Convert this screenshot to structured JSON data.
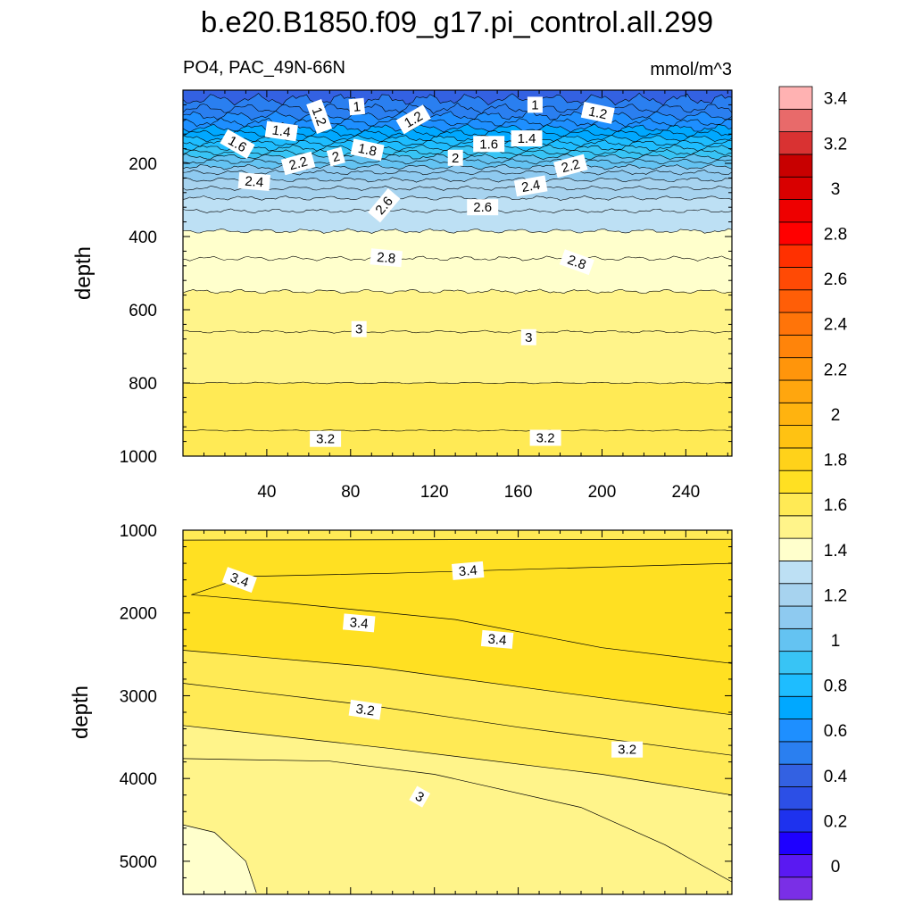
{
  "figure": {
    "title": "b.e20.B1850.f09_g17.pi_control.all.299",
    "left_subtitle": "PO4, PAC_49N-66N",
    "right_subtitle": "mmol/m^3",
    "panel_border_color": "#000000"
  },
  "chart_data": [
    {
      "type": "heatmap",
      "name": "upper-panel",
      "variable": "PO4",
      "region": "PAC_49N-66N",
      "units": "mmol/m^3",
      "ylabel": "depth",
      "xlabel": "",
      "xlim": [
        0,
        262
      ],
      "ylim": [
        0,
        1000
      ],
      "y_inverted": true,
      "x_ticks": [
        40,
        80,
        120,
        160,
        200,
        240
      ],
      "y_ticks": [
        200,
        400,
        600,
        800,
        1000
      ],
      "isoline_depths": [
        {
          "value": 0.9,
          "depth": 25
        },
        {
          "value": 1.0,
          "depth": 50
        },
        {
          "value": 1.1,
          "depth": 70
        },
        {
          "value": 1.2,
          "depth": 88
        },
        {
          "value": 1.3,
          "depth": 104
        },
        {
          "value": 1.4,
          "depth": 118
        },
        {
          "value": 1.5,
          "depth": 132
        },
        {
          "value": 1.6,
          "depth": 145
        },
        {
          "value": 1.7,
          "depth": 158
        },
        {
          "value": 1.8,
          "depth": 170
        },
        {
          "value": 1.9,
          "depth": 182
        },
        {
          "value": 2.0,
          "depth": 195
        },
        {
          "value": 2.1,
          "depth": 210
        },
        {
          "value": 2.2,
          "depth": 225
        },
        {
          "value": 2.3,
          "depth": 245
        },
        {
          "value": 2.4,
          "depth": 268
        },
        {
          "value": 2.5,
          "depth": 295
        },
        {
          "value": 2.6,
          "depth": 330
        },
        {
          "value": 2.7,
          "depth": 385
        },
        {
          "value": 2.8,
          "depth": 460
        },
        {
          "value": 2.9,
          "depth": 550
        },
        {
          "value": 3.0,
          "depth": 660
        },
        {
          "value": 3.1,
          "depth": 800
        },
        {
          "value": 3.2,
          "depth": 930
        }
      ],
      "contour_labels": [
        {
          "text": "1",
          "x": 83,
          "depth": 45,
          "rotation": -5
        },
        {
          "text": "1",
          "x": 168,
          "depth": 40,
          "rotation": 0
        },
        {
          "text": "1.2",
          "x": 198,
          "depth": 62,
          "rotation": 12
        },
        {
          "text": "1.2",
          "x": 65,
          "depth": 72,
          "rotation": 70
        },
        {
          "text": "1.2",
          "x": 110,
          "depth": 80,
          "rotation": -30
        },
        {
          "text": "1.4",
          "x": 47,
          "depth": 112,
          "rotation": 8
        },
        {
          "text": "1.4",
          "x": 164,
          "depth": 132,
          "rotation": 0
        },
        {
          "text": "1.6",
          "x": 26,
          "depth": 147,
          "rotation": 30
        },
        {
          "text": "1.6",
          "x": 146,
          "depth": 147,
          "rotation": 0
        },
        {
          "text": "1.8",
          "x": 88,
          "depth": 163,
          "rotation": 12
        },
        {
          "text": "2",
          "x": 73,
          "depth": 182,
          "rotation": -15
        },
        {
          "text": "2",
          "x": 130,
          "depth": 185,
          "rotation": 0
        },
        {
          "text": "2.2",
          "x": 55,
          "depth": 200,
          "rotation": -15
        },
        {
          "text": "2.2",
          "x": 185,
          "depth": 207,
          "rotation": -15
        },
        {
          "text": "2.4",
          "x": 34,
          "depth": 250,
          "rotation": 5
        },
        {
          "text": "2.4",
          "x": 166,
          "depth": 262,
          "rotation": -10
        },
        {
          "text": "2.6",
          "x": 96,
          "depth": 315,
          "rotation": -50
        },
        {
          "text": "2.6",
          "x": 143,
          "depth": 320,
          "rotation": 0
        },
        {
          "text": "2.8",
          "x": 97,
          "depth": 458,
          "rotation": 5
        },
        {
          "text": "2.8",
          "x": 188,
          "depth": 470,
          "rotation": 20
        },
        {
          "text": "3",
          "x": 84,
          "depth": 653,
          "rotation": 0
        },
        {
          "text": "3",
          "x": 165,
          "depth": 675,
          "rotation": 0
        },
        {
          "text": "3.2",
          "x": 68,
          "depth": 953,
          "rotation": 0
        },
        {
          "text": "3.2",
          "x": 173,
          "depth": 950,
          "rotation": 0
        }
      ]
    },
    {
      "type": "heatmap",
      "name": "lower-panel",
      "variable": "PO4",
      "units": "mmol/m^3",
      "ylabel": "depth",
      "xlabel": "",
      "xlim": [
        0,
        262
      ],
      "ylim": [
        1000,
        5400
      ],
      "y_inverted": true,
      "x_ticks": [
        40,
        80,
        120,
        160,
        200,
        240
      ],
      "y_ticks": [
        1000,
        2000,
        3000,
        4000,
        5000
      ],
      "contour_lines": [
        {
          "value": 3.3,
          "points": [
            [
              0,
              1120
            ],
            [
              262,
              1110
            ]
          ]
        },
        {
          "value": 3.4,
          "points": [
            [
              4,
              1780
            ],
            [
              30,
              1560
            ],
            [
              100,
              1520
            ],
            [
              180,
              1460
            ],
            [
              262,
              1400
            ]
          ]
        },
        {
          "value": 3.4,
          "points": [
            [
              4,
              1780
            ],
            [
              50,
              1880
            ],
            [
              130,
              2080
            ],
            [
              200,
              2420
            ],
            [
              262,
              2610
            ]
          ]
        },
        {
          "value": 3.3,
          "points": [
            [
              0,
              2450
            ],
            [
              90,
              2650
            ],
            [
              180,
              2960
            ],
            [
              262,
              3230
            ]
          ]
        },
        {
          "value": 3.2,
          "points": [
            [
              0,
              2850
            ],
            [
              90,
              3120
            ],
            [
              160,
              3380
            ],
            [
              262,
              3720
            ]
          ]
        },
        {
          "value": 3.1,
          "points": [
            [
              0,
              3360
            ],
            [
              100,
              3640
            ],
            [
              200,
              3950
            ],
            [
              262,
              4200
            ]
          ]
        },
        {
          "value": 3.0,
          "points": [
            [
              0,
              3760
            ],
            [
              70,
              3790
            ],
            [
              120,
              3950
            ],
            [
              190,
              4350
            ],
            [
              230,
              4800
            ],
            [
              262,
              5250
            ]
          ]
        },
        {
          "value": 2.9,
          "points": [
            [
              0,
              4560
            ],
            [
              15,
              4650
            ],
            [
              30,
              5000
            ],
            [
              35,
              5380
            ]
          ]
        }
      ],
      "contour_labels": [
        {
          "text": "3.4",
          "x": 27,
          "depth": 1600,
          "rotation": 20
        },
        {
          "text": "3.4",
          "x": 136,
          "depth": 1490,
          "rotation": -5
        },
        {
          "text": "3.4",
          "x": 84,
          "depth": 2120,
          "rotation": 5
        },
        {
          "text": "3.4",
          "x": 150,
          "depth": 2320,
          "rotation": 5
        },
        {
          "text": "3.2",
          "x": 87,
          "depth": 3170,
          "rotation": 8
        },
        {
          "text": "3.2",
          "x": 212,
          "depth": 3650,
          "rotation": 0
        },
        {
          "text": "3",
          "x": 113,
          "depth": 4220,
          "rotation": 30
        }
      ]
    }
  ],
  "colorbar": {
    "bounds": [
      -0.1,
      0.1,
      0.3,
      0.5,
      0.7,
      0.9,
      1.1,
      1.3,
      1.5,
      1.7,
      1.9,
      2.1,
      2.3,
      2.5,
      2.7,
      2.9,
      3.1,
      3.3,
      3.5,
      3.7
    ],
    "colors": [
      "#7a2fe6",
      "#5a19f2",
      "#1e00ff",
      "#1e32ee",
      "#2c4fe6",
      "#3361e2",
      "#2a7ff0",
      "#1e8fff",
      "#00a8ff",
      "#1ebdff",
      "#38c4f5",
      "#64c3f2",
      "#8ecaf0",
      "#a7d3ef",
      "#bde0f4",
      "#ffffcc",
      "#fff48a",
      "#ffea55",
      "#ffe022",
      "#ffd21a",
      "#ffc212",
      "#ffb30f",
      "#ffa60e",
      "#ff950b",
      "#ff840a",
      "#ff7409",
      "#ff5e07",
      "#ff4a05",
      "#ff3000",
      "#ff0000",
      "#ee0000",
      "#d90000",
      "#c80000",
      "#d93232",
      "#e86a6a",
      "#ffb2b2"
    ],
    "labels": [
      "0",
      "0.2",
      "0.4",
      "0.6",
      "0.8",
      "1",
      "1.2",
      "1.4",
      "1.6",
      "1.8",
      "2",
      "2.2",
      "2.4",
      "2.6",
      "2.8",
      "3",
      "3.2",
      "3.4"
    ]
  }
}
